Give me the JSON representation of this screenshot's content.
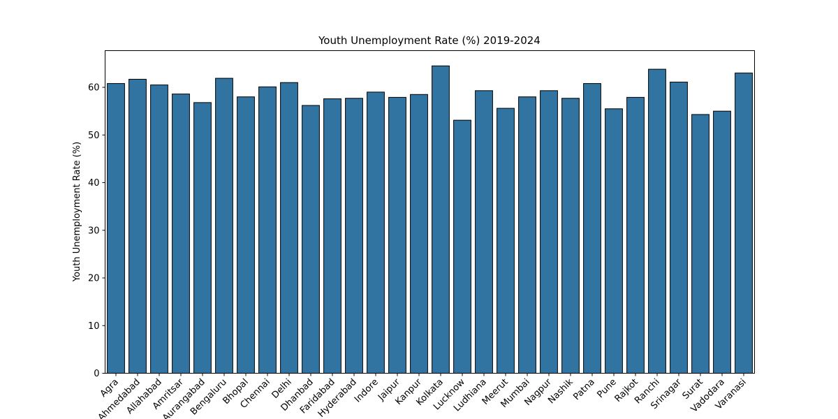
{
  "chart_data": {
    "type": "bar",
    "title": "Youth Unemployment Rate (%) 2019-2024",
    "xlabel": "",
    "ylabel": "Youth Unemployment Rate (%)",
    "ylim": [
      0,
      67.7
    ],
    "yticks": [
      0,
      10,
      20,
      30,
      40,
      50,
      60
    ],
    "grid": false,
    "bar_color": "#3274a1",
    "edge_color": "#000000",
    "categories": [
      "Agra",
      "Ahmedabad",
      "Allahabad",
      "Amritsar",
      "Aurangabad",
      "Bengaluru",
      "Bhopal",
      "Chennai",
      "Delhi",
      "Dhanbad",
      "Faridabad",
      "Hyderabad",
      "Indore",
      "Jaipur",
      "Kanpur",
      "Kolkata",
      "Lucknow",
      "Ludhiana",
      "Meerut",
      "Mumbai",
      "Nagpur",
      "Nashik",
      "Patna",
      "Pune",
      "Rajkot",
      "Ranchi",
      "Srinagar",
      "Surat",
      "Vadodara",
      "Varanasi"
    ],
    "values": [
      60.8,
      61.7,
      60.5,
      58.6,
      56.8,
      61.9,
      58.0,
      60.1,
      61.0,
      56.2,
      57.6,
      57.7,
      59.0,
      57.9,
      58.5,
      64.5,
      53.1,
      59.3,
      55.6,
      58.0,
      59.3,
      57.7,
      60.8,
      55.5,
      57.9,
      63.8,
      61.1,
      54.3,
      55.0,
      63.0
    ]
  }
}
